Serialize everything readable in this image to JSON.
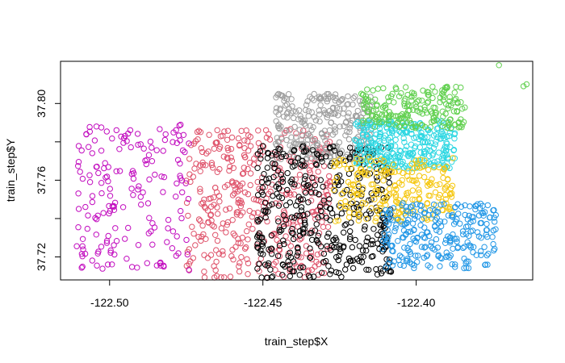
{
  "chart_data": {
    "type": "scatter",
    "title": "",
    "xlabel": "train_step$X",
    "ylabel": "train_step$Y",
    "xlim": [
      -122.516,
      -122.362
    ],
    "ylim": [
      37.708,
      37.822
    ],
    "x_ticks": [
      -122.5,
      -122.45,
      -122.4
    ],
    "x_tick_labels": [
      "-122.50",
      "-122.45",
      "-122.40"
    ],
    "y_ticks": [
      37.72,
      37.76,
      37.8
    ],
    "y_tick_labels": [
      "37.72",
      "37.76",
      "37.80"
    ],
    "grid": false,
    "legend": "none",
    "marker": "open-circle",
    "series": [
      {
        "color": "#DF536B",
        "points_estimated": 420,
        "region": {
          "x": [
            -122.475,
            -122.428
          ],
          "y": [
            37.709,
            37.787
          ]
        }
      },
      {
        "color": "#C20DBF",
        "points_estimated": 180,
        "region": {
          "x": [
            -122.511,
            -122.474
          ],
          "y": [
            37.713,
            37.789
          ]
        }
      },
      {
        "color": "#9E9E9E",
        "points_estimated": 260,
        "region": {
          "x": [
            -122.446,
            -122.414
          ],
          "y": [
            37.77,
            37.805
          ]
        }
      },
      {
        "color": "#000000",
        "points_estimated": 420,
        "region": {
          "x": [
            -122.452,
            -122.408
          ],
          "y": [
            37.709,
            37.778
          ]
        }
      },
      {
        "color": "#2DD7E2",
        "points_estimated": 300,
        "region": {
          "x": [
            -122.42,
            -122.387
          ],
          "y": [
            37.766,
            37.791
          ]
        }
      },
      {
        "color": "#61D04F",
        "points_estimated": 200,
        "region": {
          "x": [
            -122.418,
            -122.384
          ],
          "y": [
            37.787,
            37.809
          ]
        }
      },
      {
        "color": "#F5C710",
        "points_estimated": 220,
        "region": {
          "x": [
            -122.427,
            -122.388
          ],
          "y": [
            37.738,
            37.772
          ]
        }
      },
      {
        "color": "#2297E6",
        "points_estimated": 260,
        "region": {
          "x": [
            -122.411,
            -122.374
          ],
          "y": [
            37.714,
            37.748
          ]
        }
      }
    ],
    "outliers": [
      {
        "x": -122.373,
        "y": 37.82,
        "color": "#61D04F"
      },
      {
        "x": -122.364,
        "y": 37.81,
        "color": "#61D04F"
      },
      {
        "x": -122.365,
        "y": 37.809,
        "color": "#61D04F"
      }
    ]
  }
}
